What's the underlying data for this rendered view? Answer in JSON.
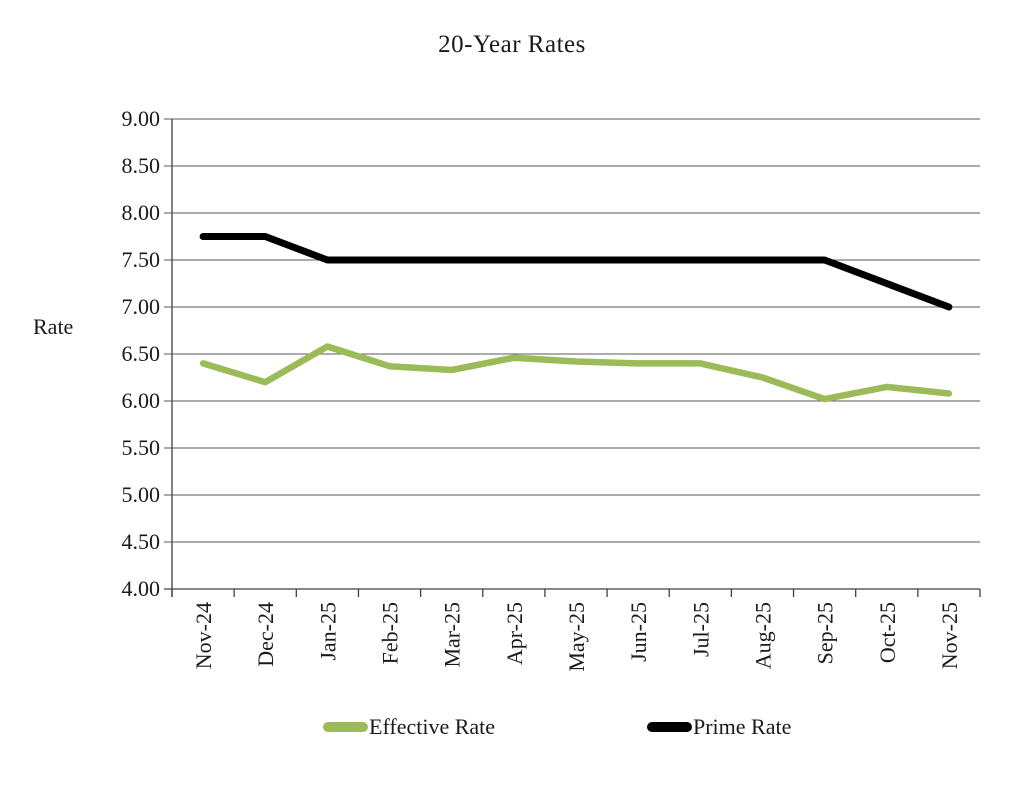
{
  "title": "20-Year Rates",
  "y_axis": {
    "label": "Rate",
    "tick_labels": [
      "9.00",
      "8.50",
      "8.00",
      "7.50",
      "7.00",
      "6.50",
      "6.00",
      "5.50",
      "5.00",
      "4.50",
      "4.00"
    ]
  },
  "x_axis": {
    "tick_labels": [
      "Nov-24",
      "Dec-24",
      "Jan-25",
      "Feb-25",
      "Mar-25",
      "Apr-25",
      "May-25",
      "Jun-25",
      "Jul-25",
      "Aug-25",
      "Sep-25",
      "Oct-25",
      "Nov-25"
    ]
  },
  "legend": {
    "items": [
      {
        "label": "Effective Rate",
        "color": "#9BBB59"
      },
      {
        "label": "Prime Rate",
        "color": "#000000"
      }
    ]
  },
  "colors": {
    "effective_rate_line": "#9BBB59",
    "prime_rate_line": "#000000",
    "gridline": "#595959",
    "axis": "#404040",
    "text": "#1a1a1a"
  },
  "chart_data": {
    "type": "line",
    "title": "20-Year Rates",
    "xlabel": "",
    "ylabel": "Rate",
    "ylim": [
      4.0,
      9.0
    ],
    "ytick_step": 0.5,
    "grid": true,
    "legend_position": "bottom",
    "x_label_rotation_deg": 90,
    "categories": [
      "Nov-24",
      "Dec-24",
      "Jan-25",
      "Feb-25",
      "Mar-25",
      "Apr-25",
      "May-25",
      "Jun-25",
      "Jul-25",
      "Aug-25",
      "Sep-25",
      "Oct-25",
      "Nov-25"
    ],
    "series": [
      {
        "name": "Effective Rate",
        "color": "#9BBB59",
        "values": [
          6.4,
          6.2,
          6.58,
          6.37,
          6.33,
          6.46,
          6.42,
          6.4,
          6.4,
          6.25,
          6.02,
          6.15,
          6.08
        ]
      },
      {
        "name": "Prime Rate",
        "color": "#000000",
        "values": [
          7.75,
          7.75,
          7.5,
          7.5,
          7.5,
          7.5,
          7.5,
          7.5,
          7.5,
          7.5,
          7.5,
          7.25,
          7.0
        ]
      }
    ]
  }
}
